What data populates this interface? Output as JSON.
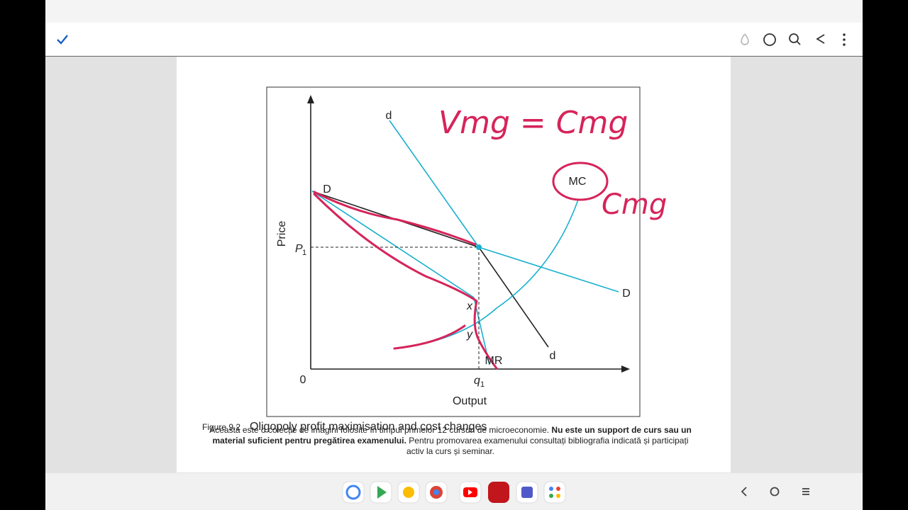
{
  "figure": {
    "d_top": "d",
    "mc": "MC",
    "d_left": "D",
    "price": "Price",
    "p1": {
      "main": "P",
      "sub": "1"
    },
    "x": "x",
    "y": "y",
    "mr": "MR",
    "d_bottom": "d",
    "origin": "0",
    "q1": {
      "main": "q",
      "sub": "1"
    },
    "output": "Output",
    "d_right": "D"
  },
  "annotations": [
    "Vmg = Cmg",
    "Cmg"
  ],
  "caption": {
    "number": "Figure 9.2",
    "title": "Oligopoly profit maximisation and cost changes"
  },
  "notice": {
    "part1": "Această este o colecție de imagini folosite în timpul primelor 12 cursuri de microeconomie. ",
    "bold": "Nu este un support de curs sau un material suficient pentru pregătirea examenului.",
    "part2": " Pentru promovarea examenului consultați bibliografia indicată și participați activ la curs și seminar."
  }
}
